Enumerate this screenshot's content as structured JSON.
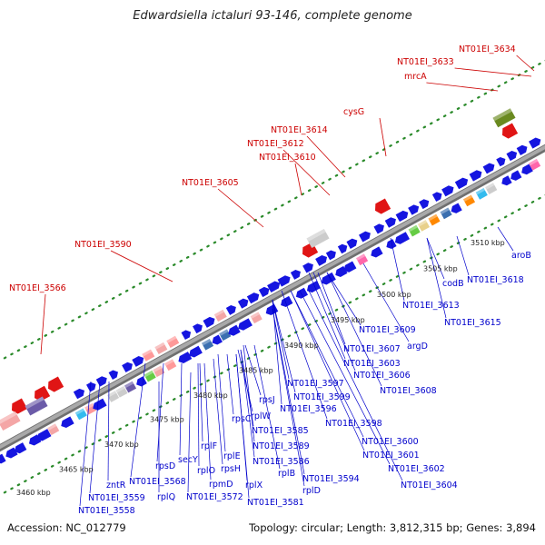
{
  "title": "Edwardsiella ictaluri 93-146, complete genome",
  "footer": {
    "accession": "Accession: NC_012779",
    "stats": "Topology: circular; Length: 3,812,315 bp; Genes: 3,894"
  },
  "colors": {
    "backbone": "#a9a9a9",
    "forward_feature": "#1515e0",
    "reverse_feature": "#e01515",
    "rna_feature": "#f0a0a0",
    "dot_track": "#2a8a2a",
    "label_forward": "#0000cc",
    "label_reverse": "#cc0000"
  },
  "kbp_ticks": [
    "3460 kbp",
    "3465 kbp",
    "3470 kbp",
    "3475 kbp",
    "3480 kbp",
    "3485 kbp",
    "3490 kbp",
    "3495 kbp",
    "3500 kbp",
    "3505 kbp",
    "3510 kbp"
  ],
  "upper_labels": [
    "NT01EI_3634",
    "NT01EI_3633",
    "mrcA",
    "cysG",
    "NT01EI_3614",
    "NT01EI_3612",
    "NT01EI_3610",
    "NT01EI_3605",
    "NT01EI_3590",
    "NT01EI_3566"
  ],
  "lower_labels": [
    "aroB",
    "NT01EI_3618",
    "codB",
    "NT01EI_3613",
    "NT01EI_3615",
    "NT01EI_3609",
    "NT01EI_3607",
    "argD",
    "NT01EI_3603",
    "NT01EI_3606",
    "NT01EI_3608",
    "NT01EI_3597",
    "NT01EI_3599",
    "rpsJ",
    "NT01EI_3596",
    "NT01EI_3598",
    "rpsC",
    "rplW",
    "NT01EI_3585",
    "NT01EI_3600",
    "NT01EI_3589",
    "NT01EI_3601",
    "rplF",
    "rplE",
    "NT01EI_3586",
    "NT01EI_3602",
    "secY",
    "rpsH",
    "rplB",
    "NT01EI_3594",
    "rpsD",
    "rplO",
    "rplX",
    "NT01EI_3604",
    "NT01EI_3568",
    "rpmD",
    "rplD",
    "zntR",
    "rplQ",
    "NT01EI_3572",
    "NT01EI_3581",
    "NT01EI_3559",
    "NT01EI_3558"
  ]
}
